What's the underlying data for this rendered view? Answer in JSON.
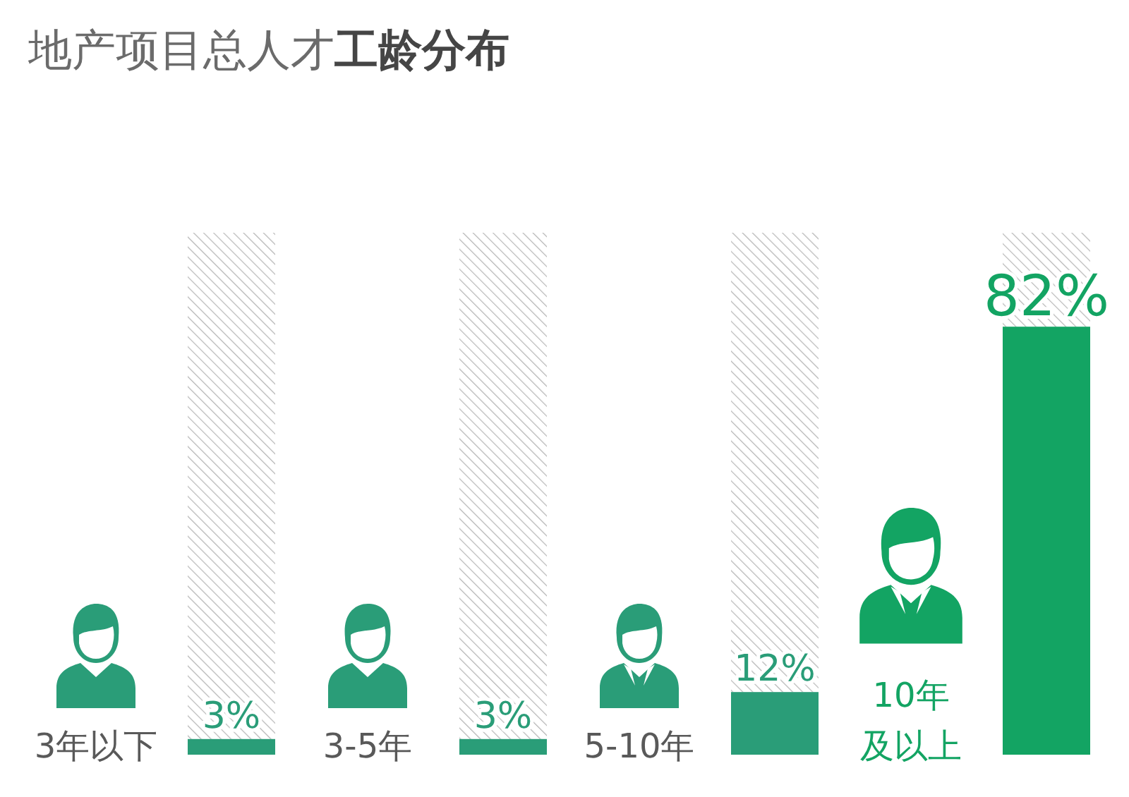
{
  "chart_data": {
    "type": "bar",
    "title": "地产项目总人才工龄分布",
    "categories": [
      "3年以下",
      "3-5年",
      "5-10年",
      "10年及以上"
    ],
    "values": [
      3,
      3,
      12,
      82
    ],
    "value_labels": [
      "3%",
      "3%",
      "12%",
      "82%"
    ],
    "colors": [
      "#2a9d78",
      "#2a9d78",
      "#2a9d78",
      "#13a463"
    ],
    "ylim": [
      0,
      100
    ]
  }
}
